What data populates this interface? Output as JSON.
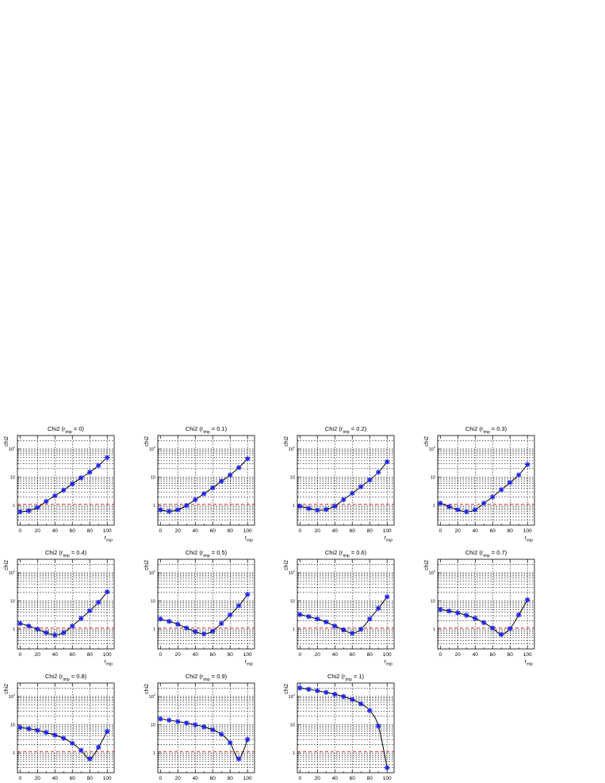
{
  "chart_data": [
    {
      "type": "line",
      "title": {
        "pre": "Chi2 (r",
        "sub": "tmp",
        "post": " = 0)"
      },
      "ylabel": "chi2",
      "xlabel": {
        "main": "r",
        "sub": "exp"
      },
      "x": [
        0,
        10,
        20,
        30,
        40,
        50,
        60,
        70,
        80,
        90,
        100
      ],
      "values": [
        0.6,
        0.65,
        0.85,
        1.4,
        2.2,
        3.5,
        5.8,
        9.5,
        15,
        26,
        50
      ],
      "yscale": "log",
      "ylim": [
        0.2,
        300
      ],
      "xlim": [
        -3,
        108
      ],
      "ref_line": 1.1
    },
    {
      "type": "line",
      "title": {
        "pre": "Chi2 (r",
        "sub": "tmp",
        "post": " = 0.1)"
      },
      "ylabel": "chi2",
      "xlabel": {
        "main": "r",
        "sub": "exp"
      },
      "x": [
        0,
        10,
        20,
        30,
        40,
        50,
        60,
        70,
        80,
        90,
        100
      ],
      "values": [
        0.7,
        0.62,
        0.7,
        1.0,
        1.6,
        2.6,
        4.2,
        7.2,
        12,
        22,
        45
      ],
      "yscale": "log",
      "ylim": [
        0.2,
        300
      ],
      "xlim": [
        -3,
        108
      ],
      "ref_line": 1.1
    },
    {
      "type": "line",
      "title": {
        "pre": "Chi2 (r",
        "sub": "tmp",
        "post": " = 0.2)"
      },
      "ylabel": "chi2",
      "xlabel": {
        "main": "r",
        "sub": "exp"
      },
      "x": [
        0,
        10,
        20,
        30,
        40,
        50,
        60,
        70,
        80,
        90,
        100
      ],
      "values": [
        0.95,
        0.78,
        0.68,
        0.72,
        0.95,
        1.6,
        2.7,
        4.6,
        8,
        15,
        35
      ],
      "yscale": "log",
      "ylim": [
        0.2,
        300
      ],
      "xlim": [
        -3,
        108
      ],
      "ref_line": 1.1
    },
    {
      "type": "line",
      "title": {
        "pre": "Chi2 (r",
        "sub": "tmp",
        "post": " = 0.3)"
      },
      "ylabel": "chi2",
      "xlabel": {
        "main": "r",
        "sub": "exp"
      },
      "x": [
        0,
        10,
        20,
        30,
        40,
        50,
        60,
        70,
        80,
        90,
        100
      ],
      "values": [
        1.2,
        0.9,
        0.7,
        0.6,
        0.7,
        1.2,
        2.0,
        3.6,
        6.5,
        12,
        28
      ],
      "yscale": "log",
      "ylim": [
        0.2,
        300
      ],
      "xlim": [
        -3,
        108
      ],
      "ref_line": 1.1
    },
    {
      "type": "line",
      "title": {
        "pre": "Chi2 (r",
        "sub": "tmp",
        "post": " = 0.4)"
      },
      "ylabel": "chi2",
      "xlabel": {
        "main": "r",
        "sub": "exp"
      },
      "x": [
        0,
        10,
        20,
        30,
        40,
        50,
        60,
        70,
        80,
        90,
        100
      ],
      "values": [
        1.6,
        1.3,
        1.0,
        0.75,
        0.62,
        0.75,
        1.3,
        2.4,
        4.5,
        9,
        21
      ],
      "yscale": "log",
      "ylim": [
        0.2,
        300
      ],
      "xlim": [
        -3,
        108
      ],
      "ref_line": 1.1
    },
    {
      "type": "line",
      "title": {
        "pre": "Chi2 (r",
        "sub": "tmp",
        "post": " = 0.5)"
      },
      "ylabel": "chi2",
      "xlabel": {
        "main": "r",
        "sub": "exp"
      },
      "x": [
        0,
        10,
        20,
        30,
        40,
        50,
        60,
        70,
        80,
        90,
        100
      ],
      "values": [
        2.3,
        1.9,
        1.5,
        1.1,
        0.82,
        0.68,
        0.85,
        1.6,
        3.2,
        6.8,
        17
      ],
      "yscale": "log",
      "ylim": [
        0.2,
        300
      ],
      "xlim": [
        -3,
        108
      ],
      "ref_line": 1.1
    },
    {
      "type": "line",
      "title": {
        "pre": "Chi2 (r",
        "sub": "tmp",
        "post": " = 0.6)"
      },
      "ylabel": "chi2",
      "xlabel": {
        "main": "r",
        "sub": "exp"
      },
      "x": [
        0,
        10,
        20,
        30,
        40,
        50,
        60,
        70,
        80,
        90,
        100
      ],
      "values": [
        3.3,
        2.8,
        2.3,
        1.8,
        1.3,
        0.95,
        0.72,
        1.0,
        2.3,
        5.5,
        14
      ],
      "yscale": "log",
      "ylim": [
        0.2,
        300
      ],
      "xlim": [
        -3,
        108
      ],
      "ref_line": 1.1
    },
    {
      "type": "line",
      "title": {
        "pre": "Chi2 (r",
        "sub": "tmp",
        "post": " = 0.7)"
      },
      "ylabel": "chi2",
      "xlabel": {
        "main": "r",
        "sub": "exp"
      },
      "x": [
        0,
        10,
        20,
        30,
        40,
        50,
        60,
        70,
        80,
        90,
        100
      ],
      "values": [
        5.0,
        4.4,
        3.8,
        3.1,
        2.4,
        1.7,
        1.1,
        0.65,
        1.05,
        3.2,
        11
      ],
      "yscale": "log",
      "ylim": [
        0.2,
        300
      ],
      "xlim": [
        -3,
        108
      ],
      "ref_line": 1.1
    },
    {
      "type": "line",
      "title": {
        "pre": "Chi2 (r",
        "sub": "tmp",
        "post": " = 0.8)"
      },
      "ylabel": "chi2",
      "xlabel": {
        "main": "r",
        "sub": "exp"
      },
      "x": [
        0,
        10,
        20,
        30,
        40,
        50,
        60,
        70,
        80,
        90,
        100
      ],
      "values": [
        8.0,
        7.2,
        6.3,
        5.3,
        4.3,
        3.3,
        2.2,
        1.25,
        0.62,
        1.6,
        5.8
      ],
      "yscale": "log",
      "ylim": [
        0.2,
        300
      ],
      "xlim": [
        -3,
        108
      ],
      "ref_line": 1.1
    },
    {
      "type": "line",
      "title": {
        "pre": "Chi2 (r",
        "sub": "tmp",
        "post": " = 0.9)"
      },
      "ylabel": "chi2",
      "xlabel": {
        "main": "r",
        "sub": "exp"
      },
      "x": [
        0,
        10,
        20,
        30,
        40,
        50,
        60,
        70,
        80,
        90,
        100
      ],
      "values": [
        16,
        14.5,
        13,
        11.5,
        10,
        8.4,
        6.6,
        4.6,
        2.3,
        0.62,
        3.0
      ],
      "yscale": "log",
      "ylim": [
        0.2,
        300
      ],
      "xlim": [
        -3,
        108
      ],
      "ref_line": 1.1
    },
    {
      "type": "line",
      "title": {
        "pre": "Chi2 (r",
        "sub": "tmp",
        "post": " = 1)"
      },
      "ylabel": "chi2",
      "xlabel": {
        "main": "r",
        "sub": "exp"
      },
      "x": [
        0,
        10,
        20,
        30,
        40,
        50,
        60,
        70,
        80,
        90,
        100
      ],
      "values": [
        200,
        180,
        160,
        140,
        120,
        100,
        78,
        55,
        32,
        9,
        0.3
      ],
      "yscale": "log",
      "ylim": [
        0.2,
        300
      ],
      "xlim": [
        -3,
        108
      ],
      "ref_line": 1.1
    }
  ],
  "axes_common": {
    "xticks": [
      0,
      20,
      40,
      60,
      80,
      100
    ],
    "yticks": [
      {
        "v": 1,
        "b": "1",
        "e": ""
      },
      {
        "v": 10,
        "b": "10",
        "e": ""
      },
      {
        "v": 100,
        "b": "10",
        "e": "2"
      }
    ]
  },
  "colors": {
    "marker": "#1f24e6",
    "line": "#000000",
    "ref": "#e0302a",
    "grid": "#000000"
  }
}
